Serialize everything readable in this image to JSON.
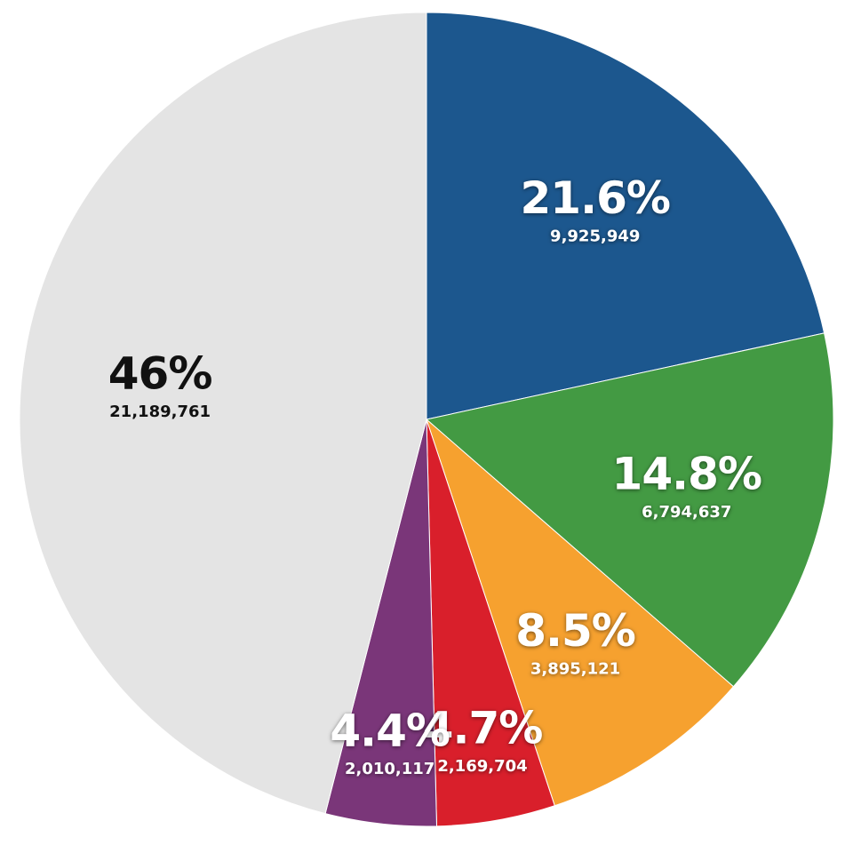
{
  "chart_data": {
    "type": "pie",
    "values": [
      21.6,
      14.8,
      8.5,
      4.7,
      4.4,
      46
    ],
    "value_labels": [
      "21.6%",
      "14.8%",
      "8.5%",
      "4.7%",
      "4.4%",
      "46%"
    ],
    "counts": [
      9925949,
      6794637,
      3895121,
      2169704,
      2010117,
      21189761
    ],
    "count_labels": [
      "9,925,949",
      "6,794,637",
      "3,895,121",
      "2,169,704",
      "2,010,117",
      "21,189,761"
    ],
    "colors": [
      "#1c578e",
      "#439a43",
      "#f6a12f",
      "#d91f2b",
      "#7a3679",
      "#e4e4e4"
    ]
  }
}
